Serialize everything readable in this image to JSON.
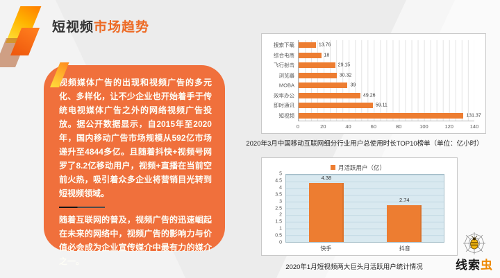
{
  "slide": {
    "title": {
      "black": "短视频",
      "orange": "市场趋势"
    },
    "body": {
      "paragraph1": "视频媒体广告的出现和视频广告的多元化、多样化，让不少企业也开始着手于传统电视媒体广告之外的网络视频广告投放。据公开数据显示，自2015年至2020年，国内移动广告市场规模从592亿市场递升至4844多亿。且随着抖快+视频号网罗了8.2亿移动用户，视频+直播在当前空前火热，吸引着众多企业将营销目光转到短视频领域。",
      "paragraph2": "随着互联网的普及，视频广告的迅速崛起在未来的网络中，视频广告的影响力与价值必会成为企业宣传媒介中最有力的媒介之一。"
    },
    "logo": {
      "icon": "spiderweb-bug-icon",
      "text_black": "线索",
      "text_orange": "虫"
    }
  },
  "colors": {
    "bar_orange": "#ED7D31",
    "panel_orange": "#F0703C",
    "title_orange": "#ED6A24",
    "vplot_background": "#D9E9F0",
    "logo_orange": "#EE8800"
  },
  "chart_data": [
    {
      "type": "bar",
      "orientation": "horizontal",
      "title": "2020年3月中国移动互联网细分行业用户总使用时长TOP10榜单（单位：亿小时）",
      "categories": [
        "搜索下载",
        "综合电商",
        "飞行射击",
        "浏览器",
        "MOBA",
        "效率办公",
        "即时通讯",
        "短视频"
      ],
      "values": [
        13.76,
        18,
        29.15,
        30.32,
        39,
        49.26,
        59.11,
        131.37
      ],
      "value_labels": [
        "13.76",
        "18",
        "29.15",
        "30.32",
        "39",
        "49.26",
        "59.11",
        "131.37"
      ],
      "xlim": [
        0,
        140
      ],
      "xticks": [
        0,
        20,
        40,
        60,
        80,
        100,
        120,
        140
      ],
      "grid": "minor vertical gridlines every 5",
      "bar_color": "#ED7D31",
      "legend_position": "none"
    },
    {
      "type": "bar",
      "orientation": "vertical",
      "title": "2020年1月短视频两大巨头月活跃用户统计情况",
      "legend": "月活跃用户（亿）",
      "legend_position": "top",
      "categories": [
        "快手",
        "抖音"
      ],
      "values": [
        4.38,
        2.74
      ],
      "value_labels": [
        "4.38",
        "2.74"
      ],
      "ylim": [
        0,
        5
      ],
      "ytick_step": 0.5,
      "grid": "horizontal gridlines every 0.5",
      "bar_color": "#ED7D31",
      "plot_background": "#D9E9F0"
    }
  ]
}
